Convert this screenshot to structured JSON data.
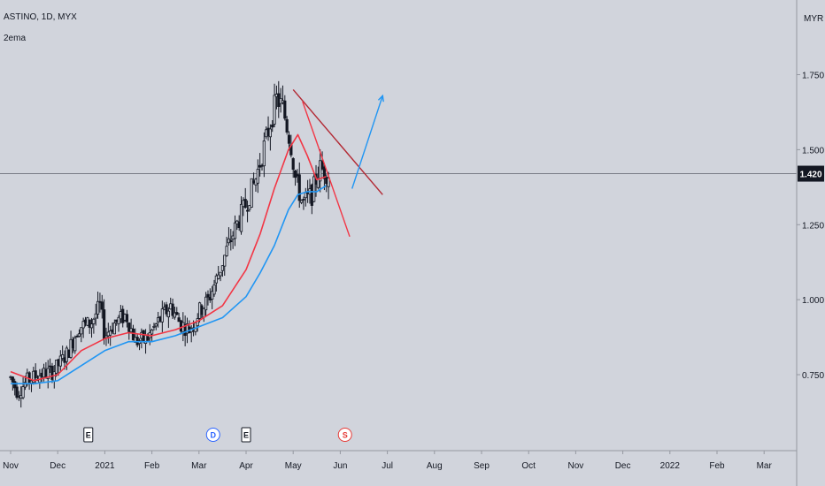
{
  "header": {
    "symbol_line": "ASTINO, 1D, MYX",
    "indicator": "2ema"
  },
  "chart_data": {
    "type": "candlestick",
    "currency": "MYR",
    "y_ticks": [
      "1.750",
      "1.500",
      "1.250",
      "1.000",
      "0.750"
    ],
    "y_tick_values": [
      1.75,
      1.5,
      1.25,
      1.0,
      0.75
    ],
    "ylim": [
      0.5,
      1.95
    ],
    "last_price": "1.420",
    "last_price_value": 1.42,
    "x_labels": [
      "Nov",
      "Dec",
      "2021",
      "Feb",
      "Mar",
      "Apr",
      "May",
      "Jun",
      "Jul",
      "Aug",
      "Sep",
      "Oct",
      "Nov",
      "Dec",
      "2022",
      "Feb",
      "Mar"
    ],
    "x_label_positions": [
      0,
      1,
      2,
      3,
      4,
      5,
      6,
      7,
      8,
      9,
      10,
      11,
      12,
      13,
      14,
      15,
      16
    ],
    "price_path": [
      [
        0.0,
        0.74
      ],
      [
        0.15,
        0.69
      ],
      [
        0.35,
        0.73
      ],
      [
        0.6,
        0.75
      ],
      [
        0.9,
        0.76
      ],
      [
        1.2,
        0.82
      ],
      [
        1.45,
        0.91
      ],
      [
        1.7,
        0.92
      ],
      [
        1.9,
        0.98
      ],
      [
        2.0,
        0.88
      ],
      [
        2.2,
        0.92
      ],
      [
        2.45,
        0.95
      ],
      [
        2.65,
        0.86
      ],
      [
        2.9,
        0.87
      ],
      [
        3.15,
        0.93
      ],
      [
        3.4,
        0.98
      ],
      [
        3.6,
        0.92
      ],
      [
        3.8,
        0.9
      ],
      [
        4.0,
        0.96
      ],
      [
        4.2,
        1.0
      ],
      [
        4.4,
        1.08
      ],
      [
        4.6,
        1.17
      ],
      [
        4.8,
        1.25
      ],
      [
        5.0,
        1.32
      ],
      [
        5.2,
        1.4
      ],
      [
        5.45,
        1.55
      ],
      [
        5.65,
        1.67
      ],
      [
        5.78,
        1.64
      ],
      [
        5.95,
        1.52
      ],
      [
        6.05,
        1.4
      ],
      [
        6.2,
        1.32
      ],
      [
        6.4,
        1.35
      ],
      [
        6.55,
        1.44
      ],
      [
        6.75,
        1.42
      ]
    ],
    "ema_fast": [
      [
        0.0,
        0.76
      ],
      [
        0.5,
        0.73
      ],
      [
        1.0,
        0.75
      ],
      [
        1.5,
        0.83
      ],
      [
        2.0,
        0.87
      ],
      [
        2.5,
        0.89
      ],
      [
        3.0,
        0.88
      ],
      [
        3.5,
        0.9
      ],
      [
        4.0,
        0.93
      ],
      [
        4.5,
        0.98
      ],
      [
        5.0,
        1.1
      ],
      [
        5.3,
        1.22
      ],
      [
        5.6,
        1.37
      ],
      [
        5.9,
        1.5
      ],
      [
        6.1,
        1.55
      ],
      [
        6.3,
        1.48
      ],
      [
        6.5,
        1.4
      ],
      [
        6.7,
        1.41
      ]
    ],
    "ema_slow": [
      [
        0.0,
        0.72
      ],
      [
        0.5,
        0.72
      ],
      [
        1.0,
        0.73
      ],
      [
        1.5,
        0.78
      ],
      [
        2.0,
        0.83
      ],
      [
        2.5,
        0.86
      ],
      [
        3.0,
        0.86
      ],
      [
        3.5,
        0.88
      ],
      [
        4.0,
        0.91
      ],
      [
        4.5,
        0.94
      ],
      [
        5.0,
        1.01
      ],
      [
        5.3,
        1.09
      ],
      [
        5.6,
        1.18
      ],
      [
        5.9,
        1.3
      ],
      [
        6.1,
        1.35
      ],
      [
        6.3,
        1.36
      ],
      [
        6.5,
        1.36
      ],
      [
        6.7,
        1.38
      ]
    ],
    "trendlines": [
      {
        "name": "upper-resistance",
        "color": "#b22833",
        "from": [
          6.0,
          1.7
        ],
        "to": [
          7.9,
          1.35
        ]
      },
      {
        "name": "lower-trend",
        "color": "#f23645",
        "from": [
          6.2,
          1.66
        ],
        "to": [
          7.2,
          1.21
        ]
      },
      {
        "name": "projection",
        "color": "#2196f3",
        "from": [
          7.25,
          1.37
        ],
        "to": [
          7.9,
          1.68
        ]
      }
    ],
    "events": [
      {
        "label": "E",
        "style": "earnings",
        "x": 1.65
      },
      {
        "label": "D",
        "style": "dividend",
        "x": 4.3
      },
      {
        "label": "E",
        "style": "earnings",
        "x": 5.0
      },
      {
        "label": "S",
        "style": "split",
        "x": 7.1
      }
    ],
    "colors": {
      "background": "#d1d4dc",
      "candle": "#131722",
      "ema_fast": "#f23645",
      "ema_slow": "#2196f3",
      "price_line": "#787b86",
      "price_tag_bg": "#131722",
      "price_tag_text": "#ffffff",
      "axis_text": "#131722",
      "border": "#9598a1"
    }
  }
}
